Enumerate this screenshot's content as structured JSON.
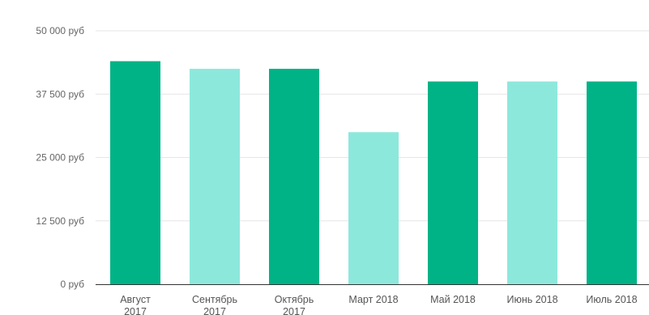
{
  "chart_data": {
    "type": "bar",
    "categories": [
      [
        "Август",
        "2017"
      ],
      [
        "Сентябрь",
        "2017"
      ],
      [
        "Октябрь",
        "2017"
      ],
      [
        "Март 2018"
      ],
      [
        "Май 2018"
      ],
      [
        "Июнь 2018"
      ],
      [
        "Июль 2018"
      ]
    ],
    "values": [
      44000,
      42500,
      42500,
      30000,
      40000,
      40000,
      40000
    ],
    "bar_colors": [
      "#00b386",
      "#8de8dc",
      "#00b386",
      "#8de8dc",
      "#00b386",
      "#8de8dc",
      "#00b386"
    ],
    "yticks": [
      0,
      12500,
      25000,
      37500,
      50000
    ],
    "ytick_labels": [
      "0 руб",
      "12 500 руб",
      "25 000 руб",
      "37 500 руб",
      "50 000 руб"
    ],
    "ylim": [
      0,
      50000
    ],
    "grid": true,
    "legend": "none",
    "title": "",
    "xlabel": "",
    "ylabel": ""
  }
}
